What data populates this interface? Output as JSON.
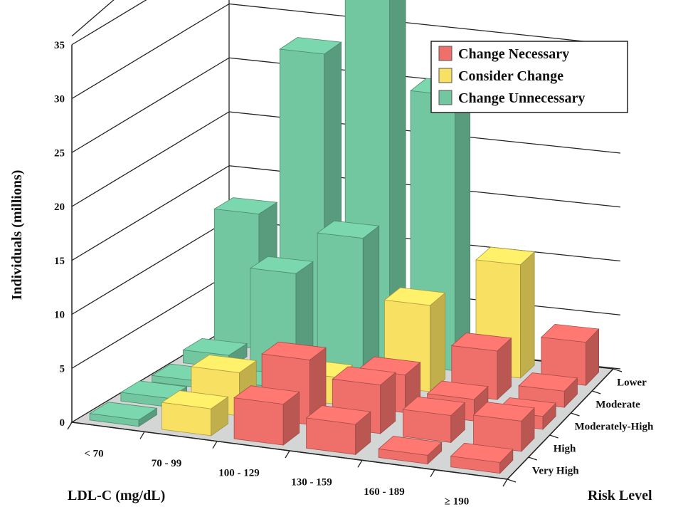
{
  "chart_data": {
    "type": "bar",
    "subtype": "3d-grouped",
    "title": "",
    "ylabel": "Individuals (millions)",
    "xlabel": "LDL-C (mg/dL)",
    "zlabel": "Risk Level",
    "ylim": [
      0,
      35
    ],
    "yticks": [
      "0",
      "5",
      "10",
      "15",
      "20",
      "25",
      "30",
      "35"
    ],
    "categories": [
      "< 70",
      "70 - 99",
      "100 - 129",
      "130 - 159",
      "160 - 189",
      "≥ 190"
    ],
    "risk_levels": [
      "Lower",
      "Moderate",
      "Moderately-High",
      "High",
      "Very High"
    ],
    "legend": {
      "position": "top-right",
      "entries": [
        {
          "label": "Change Necessary",
          "color": "#ef6f6a"
        },
        {
          "label": "Consider Change",
          "color": "#f7e062"
        },
        {
          "label": "Change Unnecessary",
          "color": "#72c7a0"
        }
      ]
    },
    "bars": [
      {
        "ldl": "< 70",
        "risk": "Lower",
        "value": 12.5,
        "status": "Change Unnecessary"
      },
      {
        "ldl": "< 70",
        "risk": "Moderate",
        "value": 1.2,
        "status": "Change Unnecessary"
      },
      {
        "ldl": "< 70",
        "risk": "Moderately-High",
        "value": 0.6,
        "status": "Change Unnecessary"
      },
      {
        "ldl": "< 70",
        "risk": "High",
        "value": 0.8,
        "status": "Change Unnecessary"
      },
      {
        "ldl": "< 70",
        "risk": "Very High",
        "value": 0.6,
        "status": "Change Unnecessary"
      },
      {
        "ldl": "70 - 99",
        "risk": "Lower",
        "value": 28.0,
        "status": "Change Unnecessary"
      },
      {
        "ldl": "70 - 99",
        "risk": "Moderate",
        "value": 9.5,
        "status": "Change Unnecessary"
      },
      {
        "ldl": "70 - 99",
        "risk": "Moderately-High",
        "value": 0.9,
        "status": "Change Unnecessary"
      },
      {
        "ldl": "70 - 99",
        "risk": "High",
        "value": 4.0,
        "status": "Consider Change"
      },
      {
        "ldl": "70 - 99",
        "risk": "Very High",
        "value": 2.5,
        "status": "Consider Change"
      },
      {
        "ldl": "100 - 129",
        "risk": "Lower",
        "value": 35.0,
        "status": "Change Unnecessary"
      },
      {
        "ldl": "100 - 129",
        "risk": "Moderate",
        "value": 13.5,
        "status": "Change Unnecessary"
      },
      {
        "ldl": "100 - 129",
        "risk": "Moderately-High",
        "value": 2.5,
        "status": "Consider Change"
      },
      {
        "ldl": "100 - 129",
        "risk": "High",
        "value": 6.0,
        "status": "Change Necessary"
      },
      {
        "ldl": "100 - 129",
        "risk": "Very High",
        "value": 3.8,
        "status": "Change Necessary"
      },
      {
        "ldl": "130 - 159",
        "risk": "Lower",
        "value": 25.5,
        "status": "Change Unnecessary"
      },
      {
        "ldl": "130 - 159",
        "risk": "Moderate",
        "value": 8.0,
        "status": "Consider Change"
      },
      {
        "ldl": "130 - 159",
        "risk": "Moderately-High",
        "value": 3.5,
        "status": "Change Necessary"
      },
      {
        "ldl": "130 - 159",
        "risk": "High",
        "value": 4.5,
        "status": "Change Necessary"
      },
      {
        "ldl": "130 - 159",
        "risk": "Very High",
        "value": 2.8,
        "status": "Change Necessary"
      },
      {
        "ldl": "160 - 189",
        "risk": "Lower",
        "value": 10.5,
        "status": "Consider Change"
      },
      {
        "ldl": "160 - 189",
        "risk": "Moderate",
        "value": 4.5,
        "status": "Change Necessary"
      },
      {
        "ldl": "160 - 189",
        "risk": "Moderately-High",
        "value": 2.0,
        "status": "Change Necessary"
      },
      {
        "ldl": "160 - 189",
        "risk": "High",
        "value": 2.5,
        "status": "Change Necessary"
      },
      {
        "ldl": "160 - 189",
        "risk": "Very High",
        "value": 0.8,
        "status": "Change Necessary"
      },
      {
        "ldl": "≥ 190",
        "risk": "Lower",
        "value": 4.0,
        "status": "Change Necessary"
      },
      {
        "ldl": "≥ 190",
        "risk": "Moderate",
        "value": 1.5,
        "status": "Change Necessary"
      },
      {
        "ldl": "≥ 190",
        "risk": "Moderately-High",
        "value": 1.2,
        "status": "Change Necessary"
      },
      {
        "ldl": "≥ 190",
        "risk": "High",
        "value": 2.8,
        "status": "Change Necessary"
      },
      {
        "ldl": "≥ 190",
        "risk": "Very High",
        "value": 1.0,
        "status": "Change Necessary"
      }
    ]
  }
}
